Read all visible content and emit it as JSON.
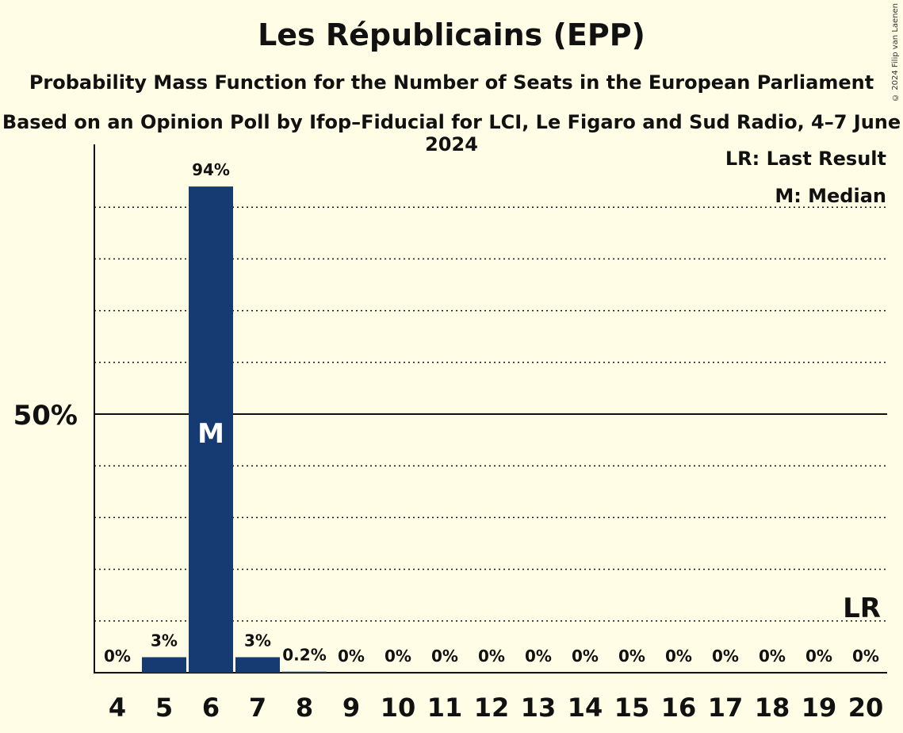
{
  "header": {
    "title": "Les Républicains (EPP)",
    "subtitle": "Probability Mass Function for the Number of Seats in the European Parliament",
    "subtitle2": "Based on an Opinion Poll by Ifop–Fiducial for LCI, Le Figaro and Sud Radio, 4–7 June 2024",
    "copyright": "© 2024 Filip van Laenen"
  },
  "legend": {
    "last_result": "LR: Last Result",
    "median": "M: Median"
  },
  "colors": {
    "background": "#FFFDE5",
    "bar": "#163A72",
    "text": "#111111"
  },
  "chart_data": {
    "type": "bar",
    "categories": [
      "4",
      "5",
      "6",
      "7",
      "8",
      "9",
      "10",
      "11",
      "12",
      "13",
      "14",
      "15",
      "16",
      "17",
      "18",
      "19",
      "20"
    ],
    "values": [
      0,
      3,
      94,
      3,
      0.2,
      0,
      0,
      0,
      0,
      0,
      0,
      0,
      0,
      0,
      0,
      0,
      0
    ],
    "value_labels": [
      "0%",
      "3%",
      "94%",
      "3%",
      "0.2%",
      "0%",
      "0%",
      "0%",
      "0%",
      "0%",
      "0%",
      "0%",
      "0%",
      "0%",
      "0%",
      "0%",
      "0%"
    ],
    "ylim": [
      0,
      100
    ],
    "y_tick_label": "50%",
    "y_tick_value": 50,
    "gridline_step": 10,
    "median_category": "6",
    "median_marker": "M",
    "last_result_category": "20",
    "last_result_marker": "LR"
  }
}
